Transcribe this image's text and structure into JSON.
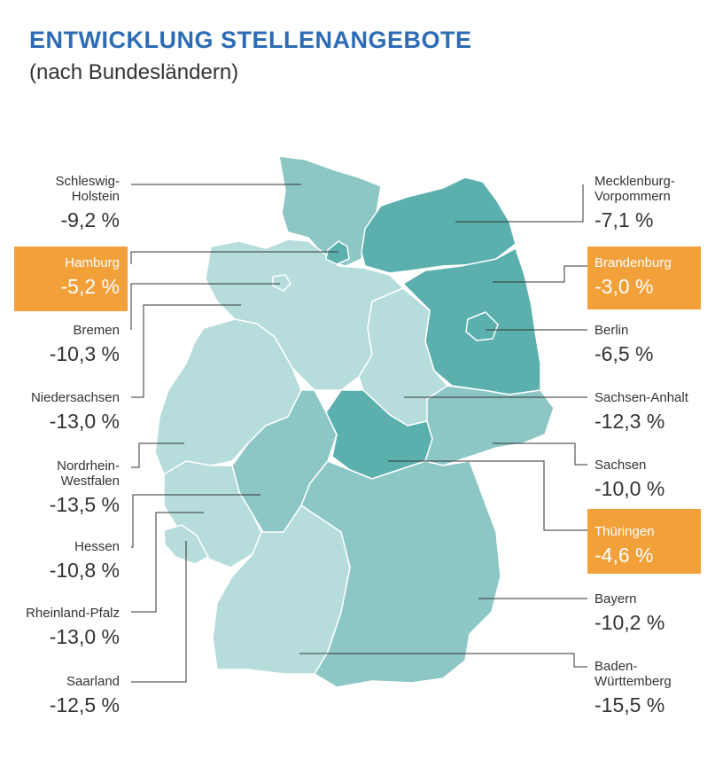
{
  "header": {
    "title": "ENTWICKLUNG STELLENANGEBOTE",
    "subtitle": "(nach Bundesländern)"
  },
  "colors": {
    "title": "#2d6cb5",
    "highlight": "#f2a03a",
    "light": "#b7dcdc",
    "medium": "#8cc6c5",
    "dark": "#5bb0ae"
  },
  "states": [
    {
      "name": "Schleswig-\nHolstein",
      "value": "-9,2 %"
    },
    {
      "name": "Hamburg",
      "value": "-5,2 %"
    },
    {
      "name": "Bremen",
      "value": "-10,3 %"
    },
    {
      "name": "Niedersachsen",
      "value": "-13,0 %"
    },
    {
      "name": "Nordrhein-\nWestfalen",
      "value": "-13,5 %"
    },
    {
      "name": "Hessen",
      "value": "-10,8 %"
    },
    {
      "name": "Rheinland-Pfalz",
      "value": "-13,0 %"
    },
    {
      "name": "Saarland",
      "value": "-12,5 %"
    },
    {
      "name": "Mecklenburg-\nVorpommern",
      "value": "-7,1 %"
    },
    {
      "name": "Brandenburg",
      "value": "-3,0 %"
    },
    {
      "name": "Berlin",
      "value": "-6,5 %"
    },
    {
      "name": "Sachsen-Anhalt",
      "value": "-12,3 %"
    },
    {
      "name": "Sachsen",
      "value": "-10,0 %"
    },
    {
      "name": "Thüringen",
      "value": "-4,6 %"
    },
    {
      "name": "Bayern",
      "value": "-10,2 %"
    },
    {
      "name": "Baden-\nWürttemberg",
      "value": "-15,5 %"
    }
  ]
}
